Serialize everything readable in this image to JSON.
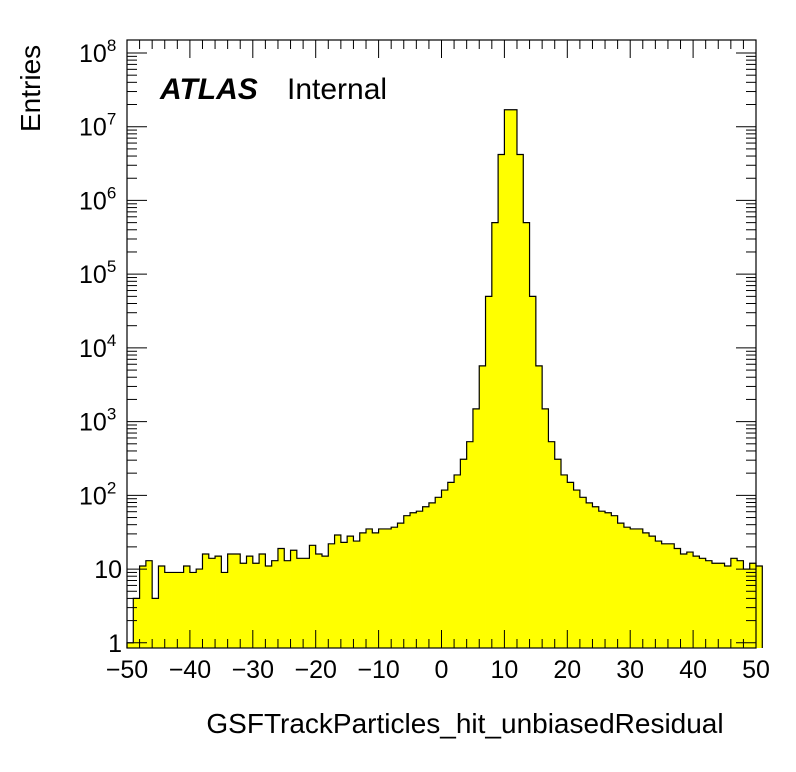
{
  "chart_data": {
    "type": "bar",
    "style": "histogram",
    "fill_color": "#ffff00",
    "line_color": "#000000",
    "xlabel": "GSFTrackParticles_hit_unbiasedResidual",
    "ylabel": "Entries",
    "annotation": {
      "bold": "ATLAS",
      "normal": "Internal"
    },
    "xlim": [
      -50,
      50
    ],
    "ylim": [
      0.85,
      150000000
    ],
    "yscale": "log",
    "grid": false,
    "x_ticks": [
      {
        "value": -50,
        "label": "−50"
      },
      {
        "value": -40,
        "label": "−40"
      },
      {
        "value": -30,
        "label": "−30"
      },
      {
        "value": -20,
        "label": "−20"
      },
      {
        "value": -10,
        "label": "−10"
      },
      {
        "value": 0,
        "label": "0"
      },
      {
        "value": 10,
        "label": "10"
      },
      {
        "value": 20,
        "label": "20"
      },
      {
        "value": 30,
        "label": "30"
      },
      {
        "value": 40,
        "label": "40"
      },
      {
        "value": 50,
        "label": "50"
      }
    ],
    "y_ticks": [
      {
        "value": 1,
        "base": "1",
        "exp": ""
      },
      {
        "value": 10,
        "base": "10",
        "exp": ""
      },
      {
        "value": 100,
        "base": "10",
        "exp": "2"
      },
      {
        "value": 1000,
        "base": "10",
        "exp": "3"
      },
      {
        "value": 10000,
        "base": "10",
        "exp": "4"
      },
      {
        "value": 100000,
        "base": "10",
        "exp": "5"
      },
      {
        "value": 1000000,
        "base": "10",
        "exp": "6"
      },
      {
        "value": 10000000,
        "base": "10",
        "exp": "7"
      },
      {
        "value": 100000000,
        "base": "10",
        "exp": "8"
      }
    ],
    "bin_edges_start": -50,
    "bin_width": 1,
    "values": [
      1,
      4,
      11,
      13,
      4,
      11,
      9,
      9,
      9,
      11,
      9,
      10,
      16,
      14,
      15,
      9,
      16,
      16,
      12,
      15,
      12,
      16,
      11,
      13,
      19,
      13,
      18,
      14,
      14,
      21,
      16,
      15,
      22,
      29,
      23,
      28,
      24,
      31,
      35,
      31,
      35,
      35,
      37,
      42,
      53,
      58,
      61,
      70,
      79,
      94,
      118,
      150,
      189,
      309,
      534,
      1490,
      5700,
      50000,
      500000,
      4200000,
      17000000,
      17000000,
      4200000,
      500000,
      50000,
      5700,
      1490,
      534,
      309,
      189,
      150,
      118,
      94,
      79,
      70,
      61,
      58,
      53,
      42,
      37,
      35,
      35,
      31,
      28,
      24,
      22,
      22,
      19,
      16,
      17,
      15,
      14,
      13,
      12,
      12,
      11,
      14,
      13,
      10,
      12,
      11
    ]
  }
}
